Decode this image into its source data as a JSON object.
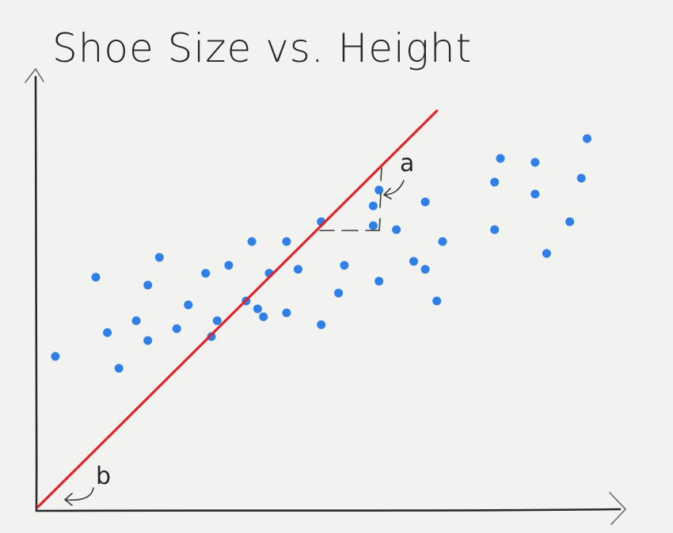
{
  "chart_data": {
    "type": "scatter",
    "title": "Shoe Size vs. Height",
    "xlabel": "",
    "ylabel": "",
    "xlim": [
      0,
      100
    ],
    "ylim": [
      0,
      100
    ],
    "grid": false,
    "points": [
      {
        "x": 3,
        "y": 38
      },
      {
        "x": 10,
        "y": 58
      },
      {
        "x": 12,
        "y": 44
      },
      {
        "x": 14,
        "y": 35
      },
      {
        "x": 17,
        "y": 47
      },
      {
        "x": 19,
        "y": 42
      },
      {
        "x": 19,
        "y": 56
      },
      {
        "x": 21,
        "y": 63
      },
      {
        "x": 24,
        "y": 45
      },
      {
        "x": 26,
        "y": 51
      },
      {
        "x": 29,
        "y": 59
      },
      {
        "x": 30,
        "y": 43
      },
      {
        "x": 31,
        "y": 47
      },
      {
        "x": 33,
        "y": 61
      },
      {
        "x": 36,
        "y": 52
      },
      {
        "x": 37,
        "y": 67
      },
      {
        "x": 38,
        "y": 50
      },
      {
        "x": 39,
        "y": 48
      },
      {
        "x": 40,
        "y": 59
      },
      {
        "x": 43,
        "y": 49
      },
      {
        "x": 43,
        "y": 67
      },
      {
        "x": 45,
        "y": 60
      },
      {
        "x": 49,
        "y": 72
      },
      {
        "x": 49,
        "y": 46
      },
      {
        "x": 52,
        "y": 54
      },
      {
        "x": 53,
        "y": 61
      },
      {
        "x": 58,
        "y": 76
      },
      {
        "x": 58,
        "y": 71
      },
      {
        "x": 59,
        "y": 57
      },
      {
        "x": 59,
        "y": 80
      },
      {
        "x": 62,
        "y": 70
      },
      {
        "x": 65,
        "y": 62
      },
      {
        "x": 67,
        "y": 77
      },
      {
        "x": 67,
        "y": 60
      },
      {
        "x": 69,
        "y": 52
      },
      {
        "x": 70,
        "y": 67
      },
      {
        "x": 79,
        "y": 82
      },
      {
        "x": 79,
        "y": 70
      },
      {
        "x": 80,
        "y": 88
      },
      {
        "x": 86,
        "y": 87
      },
      {
        "x": 86,
        "y": 79
      },
      {
        "x": 88,
        "y": 64
      },
      {
        "x": 92,
        "y": 72
      },
      {
        "x": 94,
        "y": 83
      },
      {
        "x": 95,
        "y": 93
      }
    ],
    "regression_line": {
      "from": {
        "x": 0,
        "y": 0
      },
      "to": {
        "x": 69,
        "y": 100
      }
    },
    "annotations": [
      {
        "label": "a",
        "meaning": "slope"
      },
      {
        "label": "b",
        "meaning": "intercept"
      }
    ],
    "colors": {
      "points": "#2e7fe8",
      "line": "#e0242a",
      "axes": "#2a2a2a"
    }
  }
}
